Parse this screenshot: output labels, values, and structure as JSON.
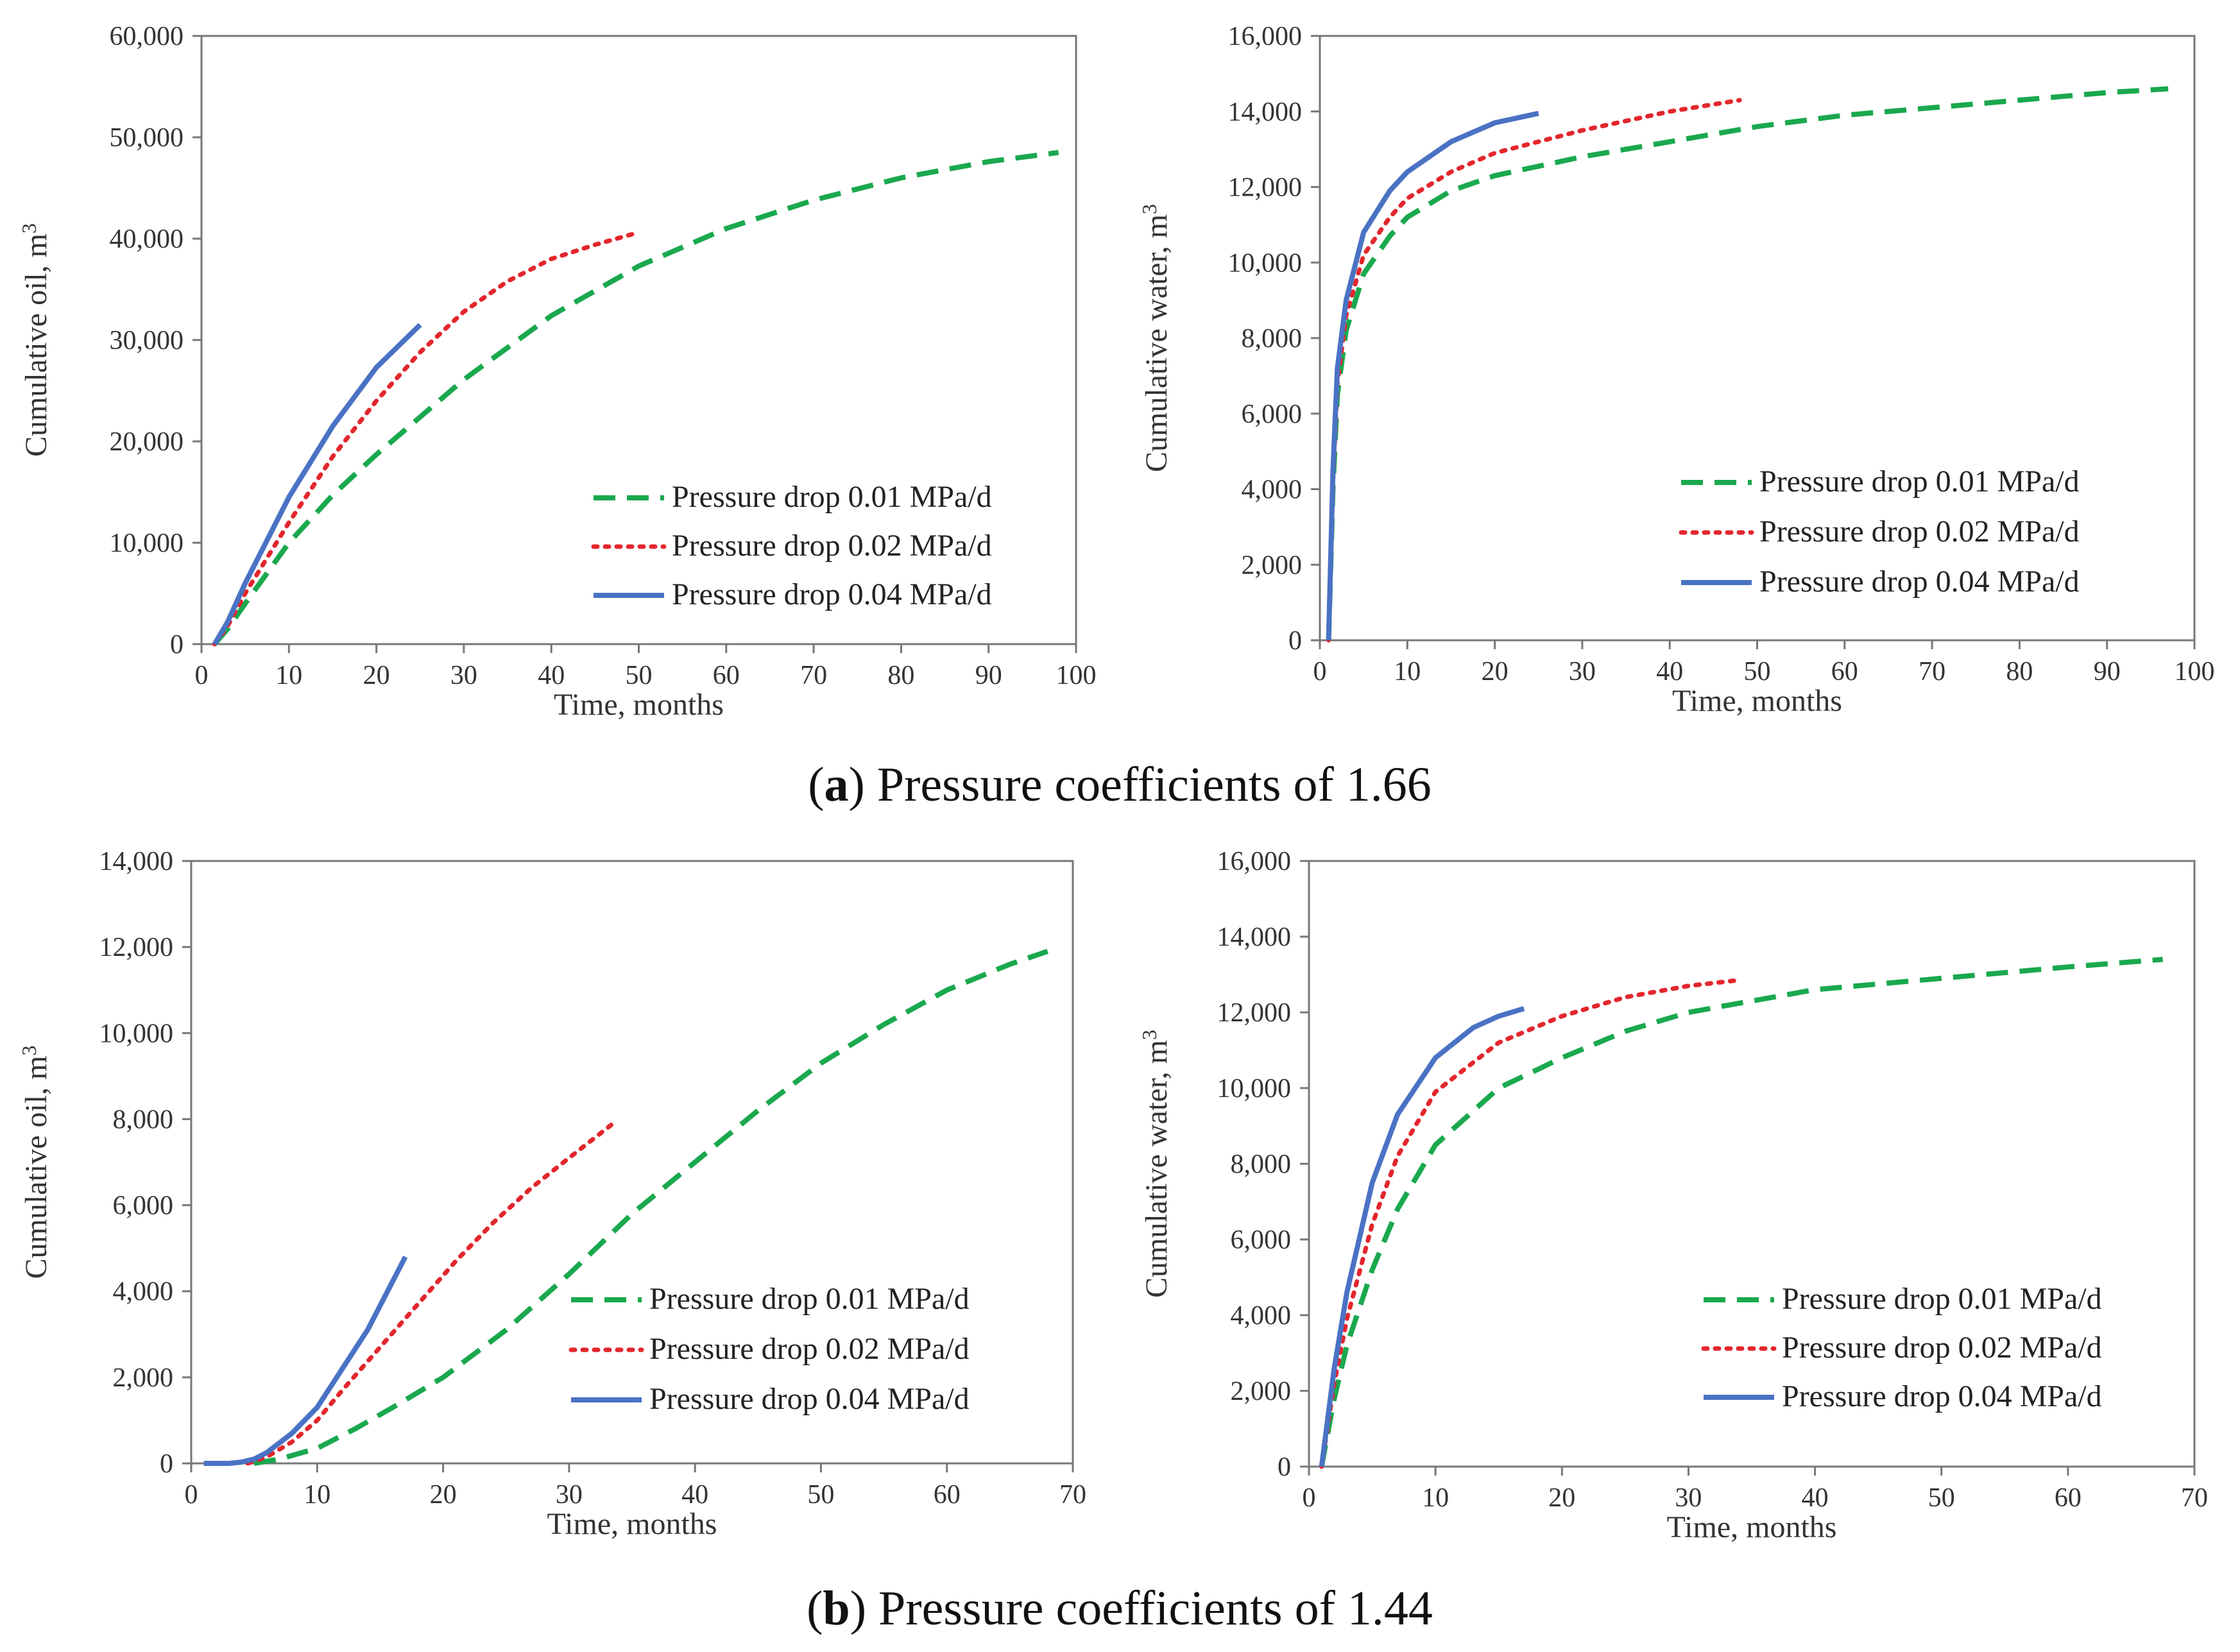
{
  "colors": {
    "s001": "#1aa84e",
    "s002": "#e3262d",
    "s004": "#4a72c4",
    "frame": "#777777"
  },
  "captions": {
    "a": {
      "open": "(",
      "letter": "a",
      "rest": ") Pressure coefficients of 1.66"
    },
    "b": {
      "open": "(",
      "letter": "b",
      "rest": ") Pressure coefficients of 1.44"
    }
  },
  "chart_data": [
    {
      "id": "a-oil",
      "type": "line",
      "title": "",
      "xlabel": "Time, months",
      "ylabel": "Cumulative oil, m",
      "ylabel_sup": "3",
      "xlim": [
        0,
        100
      ],
      "ylim": [
        0,
        60000
      ],
      "xticks": [
        0,
        10,
        20,
        30,
        40,
        50,
        60,
        70,
        80,
        90,
        100
      ],
      "xtick_labels": [
        "0",
        "10",
        "20",
        "30",
        "40",
        "50",
        "60",
        "70",
        "80",
        "90",
        "100"
      ],
      "yticks": [
        0,
        10000,
        20000,
        30000,
        40000,
        50000,
        60000
      ],
      "ytick_labels": [
        "0",
        "10,000",
        "20,000",
        "30,000",
        "40,000",
        "50,000",
        "60,000"
      ],
      "grid": false,
      "legend_position": "bottom-right",
      "series": [
        {
          "name": "Pressure drop 0.01 MPa/d",
          "style": "dashed",
          "color_key": "s001",
          "x": [
            1.5,
            3,
            5,
            10,
            15,
            20,
            30,
            40,
            50,
            60,
            70,
            80,
            90,
            98
          ],
          "y": [
            0,
            1500,
            4000,
            10000,
            14700,
            18700,
            26100,
            32400,
            37300,
            41000,
            43800,
            46000,
            47600,
            48500
          ]
        },
        {
          "name": "Pressure drop 0.02 MPa/d",
          "style": "dotted",
          "color_key": "s002",
          "x": [
            1.5,
            3,
            5,
            10,
            15,
            20,
            25,
            30,
            35,
            40,
            45,
            49.5
          ],
          "y": [
            0,
            1800,
            5000,
            12000,
            18500,
            24000,
            28800,
            32800,
            35800,
            38000,
            39400,
            40500
          ]
        },
        {
          "name": "Pressure drop 0.04 MPa/d",
          "style": "solid",
          "color_key": "s004",
          "x": [
            1.5,
            3,
            5,
            10,
            15,
            20,
            25
          ],
          "y": [
            0,
            2200,
            6000,
            14500,
            21500,
            27300,
            31500
          ]
        }
      ]
    },
    {
      "id": "a-water",
      "type": "line",
      "title": "",
      "xlabel": "Time, months",
      "ylabel": "Cumulative water, m",
      "ylabel_sup": "3",
      "xlim": [
        0,
        100
      ],
      "ylim": [
        0,
        16000
      ],
      "xticks": [
        0,
        10,
        20,
        30,
        40,
        50,
        60,
        70,
        80,
        90,
        100
      ],
      "xtick_labels": [
        "0",
        "10",
        "20",
        "30",
        "40",
        "50",
        "60",
        "70",
        "80",
        "90",
        "100"
      ],
      "yticks": [
        0,
        2000,
        4000,
        6000,
        8000,
        10000,
        12000,
        14000,
        16000
      ],
      "ytick_labels": [
        "0",
        "2,000",
        "4,000",
        "6,000",
        "8,000",
        "10,000",
        "12,000",
        "14,000",
        "16,000"
      ],
      "grid": false,
      "legend_position": "bottom-right",
      "series": [
        {
          "name": "Pressure drop 0.01 MPa/d",
          "style": "dashed",
          "color_key": "s001",
          "x": [
            1,
            1.5,
            2,
            3,
            5,
            8,
            10,
            15,
            20,
            30,
            40,
            50,
            60,
            70,
            80,
            90,
            97
          ],
          "y": [
            0,
            4000,
            6500,
            8200,
            9700,
            10700,
            11200,
            11900,
            12300,
            12800,
            13200,
            13600,
            13900,
            14100,
            14300,
            14500,
            14600
          ]
        },
        {
          "name": "Pressure drop 0.02 MPa/d",
          "style": "dotted",
          "color_key": "s002",
          "x": [
            1,
            1.5,
            2,
            3,
            5,
            8,
            10,
            15,
            20,
            30,
            40,
            48
          ],
          "y": [
            0,
            4200,
            6800,
            8600,
            10200,
            11200,
            11700,
            12400,
            12900,
            13500,
            14000,
            14300
          ]
        },
        {
          "name": "Pressure drop 0.04 MPa/d",
          "style": "solid",
          "color_key": "s004",
          "x": [
            1,
            1.5,
            2,
            3,
            5,
            8,
            10,
            15,
            20,
            25
          ],
          "y": [
            0,
            4500,
            7200,
            9000,
            10800,
            11900,
            12400,
            13200,
            13700,
            13950
          ]
        }
      ]
    },
    {
      "id": "b-oil",
      "type": "line",
      "title": "",
      "xlabel": "Time, months",
      "ylabel": "Cumulative oil, m",
      "ylabel_sup": "3",
      "xlim": [
        0,
        70
      ],
      "ylim": [
        0,
        14000
      ],
      "xticks": [
        0,
        10,
        20,
        30,
        40,
        50,
        60,
        70
      ],
      "xtick_labels": [
        "0",
        "10",
        "20",
        "30",
        "40",
        "50",
        "60",
        "70"
      ],
      "yticks": [
        0,
        2000,
        4000,
        6000,
        8000,
        10000,
        12000,
        14000
      ],
      "ytick_labels": [
        "0",
        "2,000",
        "4,000",
        "6,000",
        "8,000",
        "10,000",
        "12,000",
        "14,000"
      ],
      "grid": false,
      "legend_position": "bottom-right",
      "series": [
        {
          "name": "Pressure drop 0.01 MPa/d",
          "style": "dashed",
          "color_key": "s001",
          "x": [
            5,
            7,
            10,
            13,
            16,
            20,
            25,
            30,
            35,
            40,
            45,
            50,
            55,
            60,
            65,
            68
          ],
          "y": [
            0,
            100,
            350,
            800,
            1300,
            2000,
            3100,
            4400,
            5800,
            7000,
            8200,
            9300,
            10200,
            11000,
            11600,
            11900
          ]
        },
        {
          "name": "Pressure drop 0.02 MPa/d",
          "style": "dotted",
          "color_key": "s002",
          "x": [
            4.5,
            6,
            8,
            10,
            12,
            15,
            18,
            21,
            24,
            27,
            30,
            33.5
          ],
          "y": [
            0,
            150,
            500,
            1000,
            1700,
            2700,
            3700,
            4700,
            5600,
            6400,
            7100,
            7900
          ]
        },
        {
          "name": "Pressure drop 0.04 MPa/d",
          "style": "solid",
          "color_key": "s004",
          "x": [
            1,
            3,
            4,
            5,
            6,
            8,
            10,
            12,
            14,
            17
          ],
          "y": [
            0,
            0,
            30,
            100,
            250,
            700,
            1300,
            2200,
            3100,
            4800
          ]
        }
      ]
    },
    {
      "id": "b-water",
      "type": "line",
      "title": "",
      "xlabel": "Time, months",
      "ylabel": "Cumulative water, m",
      "ylabel_sup": "3",
      "xlim": [
        0,
        70
      ],
      "ylim": [
        0,
        16000
      ],
      "xticks": [
        0,
        10,
        20,
        30,
        40,
        50,
        60,
        70
      ],
      "xtick_labels": [
        "0",
        "10",
        "20",
        "30",
        "40",
        "50",
        "60",
        "70"
      ],
      "yticks": [
        0,
        2000,
        4000,
        6000,
        8000,
        10000,
        12000,
        14000,
        16000
      ],
      "ytick_labels": [
        "0",
        "2,000",
        "4,000",
        "6,000",
        "8,000",
        "10,000",
        "12,000",
        "14,000",
        "16,000"
      ],
      "grid": false,
      "legend_position": "bottom-right",
      "series": [
        {
          "name": "Pressure drop 0.01 MPa/d",
          "style": "dashed",
          "color_key": "s001",
          "x": [
            1,
            2,
            3,
            5,
            7,
            10,
            15,
            20,
            25,
            30,
            40,
            50,
            60,
            67.5
          ],
          "y": [
            0,
            1800,
            3200,
            5200,
            6800,
            8500,
            10000,
            10800,
            11500,
            12000,
            12600,
            12900,
            13200,
            13400
          ]
        },
        {
          "name": "Pressure drop 0.02 MPa/d",
          "style": "dotted",
          "color_key": "s002",
          "x": [
            1,
            2,
            3,
            5,
            7,
            10,
            15,
            20,
            25,
            30,
            34
          ],
          "y": [
            0,
            2200,
            3900,
            6400,
            8200,
            9900,
            11200,
            11900,
            12400,
            12700,
            12850
          ]
        },
        {
          "name": "Pressure drop 0.04 MPa/d",
          "style": "solid",
          "color_key": "s004",
          "x": [
            1,
            2,
            3,
            5,
            7,
            10,
            13,
            15,
            17
          ],
          "y": [
            0,
            2600,
            4600,
            7500,
            9300,
            10800,
            11600,
            11900,
            12100
          ]
        }
      ]
    }
  ]
}
